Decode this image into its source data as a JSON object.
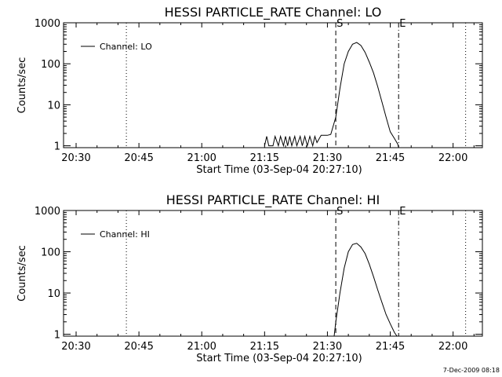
{
  "footer": {
    "timestamp": "7-Dec-2009 08:18"
  },
  "chart_data": [
    {
      "type": "line",
      "title": "HESSI PARTICLE_RATE Channel: LO",
      "xlabel": "Start Time (03-Sep-04 20:27:10)",
      "ylabel": "Counts/sec",
      "y_scale": "log",
      "ylim": [
        0.9,
        1000
      ],
      "xlim": [
        "20:27",
        "22:07"
      ],
      "x_ticks": [
        "20:30",
        "20:45",
        "21:00",
        "21:15",
        "21:30",
        "21:45",
        "22:00"
      ],
      "y_ticks": [
        "1",
        "10",
        "100",
        "1000"
      ],
      "legend": {
        "label": "Channel: LO",
        "placement": "top-left"
      },
      "markers": [
        {
          "time": "20:42",
          "style": "dotted",
          "label": ""
        },
        {
          "time": "21:32",
          "style": "dashed",
          "label": "S"
        },
        {
          "time": "21:47",
          "style": "dash-dot",
          "label": "E"
        },
        {
          "time": "22:03",
          "style": "dotted",
          "label": ""
        }
      ],
      "series": [
        {
          "name": "Channel: LO",
          "x": [
            "21:15",
            "21:15.5",
            "21:16",
            "21:17",
            "21:17.5",
            "21:18.3",
            "21:18.8",
            "21:19.5",
            "21:20",
            "21:20.5",
            "21:21",
            "21:21.5",
            "21:22.2",
            "21:22.7",
            "21:23.5",
            "21:24",
            "21:24.6",
            "21:25.2",
            "21:25.8",
            "21:26.5",
            "21:27",
            "21:27.5",
            "21:28.5",
            "21:29.5",
            "21:30",
            "21:30.8",
            "21:32",
            "21:33",
            "21:34",
            "21:35",
            "21:36",
            "21:37",
            "21:38",
            "21:39",
            "21:40",
            "21:41",
            "21:42",
            "21:43",
            "21:44",
            "21:45",
            "21:46",
            "21:46.8",
            "21:47"
          ],
          "y": [
            1,
            1.7,
            1,
            1,
            1.7,
            1,
            1.7,
            1,
            1.7,
            1,
            1.7,
            1,
            1.7,
            1,
            1.7,
            1,
            1.7,
            1,
            1.7,
            1,
            1.7,
            1.2,
            1.8,
            1.8,
            1.8,
            1.9,
            5,
            25,
            100,
            200,
            300,
            330,
            280,
            190,
            110,
            60,
            28,
            12,
            5,
            2.2,
            1.5,
            1.1,
            0.9
          ]
        }
      ]
    },
    {
      "type": "line",
      "title": "HESSI PARTICLE_RATE Channel: HI",
      "xlabel": "Start Time (03-Sep-04 20:27:10)",
      "ylabel": "Counts/sec",
      "y_scale": "log",
      "ylim": [
        0.9,
        1000
      ],
      "xlim": [
        "20:27",
        "22:07"
      ],
      "x_ticks": [
        "20:30",
        "20:45",
        "21:00",
        "21:15",
        "21:30",
        "21:45",
        "22:00"
      ],
      "y_ticks": [
        "1",
        "10",
        "100",
        "1000"
      ],
      "legend": {
        "label": "Channel: HI",
        "placement": "top-left"
      },
      "markers": [
        {
          "time": "20:42",
          "style": "dotted",
          "label": ""
        },
        {
          "time": "21:32",
          "style": "dashed",
          "label": "S"
        },
        {
          "time": "21:47",
          "style": "dash-dot",
          "label": "E"
        },
        {
          "time": "22:03",
          "style": "dotted",
          "label": ""
        }
      ],
      "series": [
        {
          "name": "Channel: HI",
          "x": [
            "21:31.6",
            "21:32",
            "21:33",
            "21:34",
            "21:35",
            "21:36",
            "21:37",
            "21:38",
            "21:39",
            "21:40",
            "21:41",
            "21:42",
            "21:43",
            "21:44",
            "21:45",
            "21:46",
            "21:46.6"
          ],
          "y": [
            0.9,
            2,
            10,
            40,
            100,
            150,
            160,
            130,
            90,
            50,
            25,
            12,
            6,
            3,
            1.8,
            1.1,
            0.9
          ]
        }
      ]
    }
  ]
}
